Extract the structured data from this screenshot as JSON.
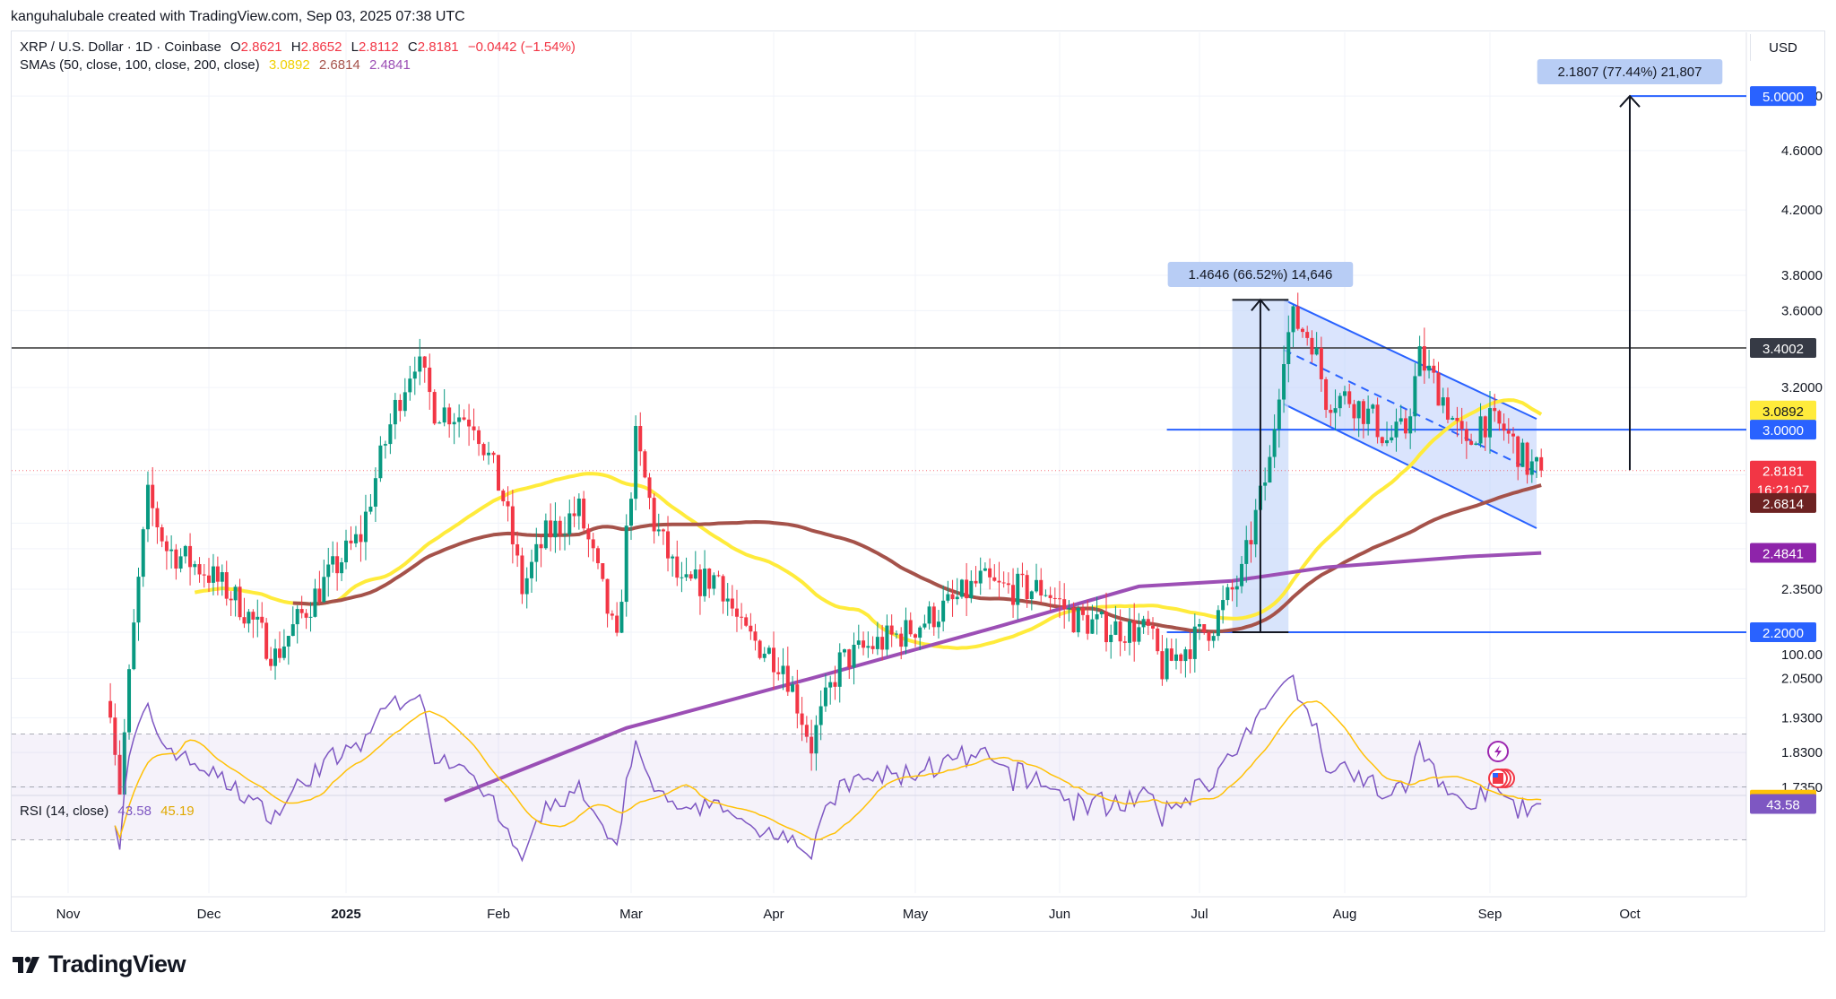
{
  "attribution": "kanguhalubale created with TradingView.com, Sep 03, 2025 07:38 UTC",
  "currency": "USD",
  "brand": "TradingView",
  "legend": {
    "symbol": "XRP / U.S. Dollar · 1D · Coinbase",
    "open_label": "O",
    "open": "2.8621",
    "high_label": "H",
    "high": "2.8652",
    "low_label": "L",
    "low": "2.8112",
    "close_label": "C",
    "close": "2.8181",
    "change": "−0.0442 (−1.54%)",
    "sma_label": "SMAs (50, close, 100, close, 200, close)",
    "sma50": "3.0892",
    "sma100": "2.6814",
    "sma200": "2.4841",
    "rsi_label": "RSI (14, close)",
    "rsi": "43.58",
    "rsi_ma": "45.19"
  },
  "colors": {
    "up": "#089981",
    "down": "#f23645",
    "sma50": "#ffeb3b",
    "sma100": "#a5524a",
    "sma200": "#9c4fb5",
    "rsi": "#7e57c2",
    "rsi_ma": "#ffc107",
    "accent": "#2962ff",
    "level": "#131722",
    "channel_fill": "#bbcdfb",
    "measure_fill": "#c7d8fa"
  },
  "icons": [
    "lightning-event-icon",
    "us-flag-event-icon",
    "tradingview-logo-icon"
  ],
  "chart_data": {
    "type": "candlestick",
    "x_axis": {
      "labels": [
        "Nov",
        "Dec",
        "2025",
        "Feb",
        "Mar",
        "Apr",
        "May",
        "Jun",
        "Jul",
        "Aug",
        "Sep",
        "Oct"
      ]
    },
    "y_axis": {
      "scale": "log",
      "range": [
        1.7,
        6.0
      ],
      "ticks": [
        "5.0000",
        "4.6000",
        "4.2000",
        "3.8000",
        "3.6000",
        "3.2000",
        "2.3500",
        "2.0500",
        "1.9300",
        "1.8300",
        "1.7350"
      ]
    },
    "price_labels": [
      {
        "label": "5.0000",
        "value": 5.0,
        "kind": "level"
      },
      {
        "label": "3.4002",
        "value": 3.4002,
        "kind": "resistance"
      },
      {
        "label": "3.0892",
        "value": 3.0892,
        "kind": "sma50"
      },
      {
        "label": "3.0000",
        "value": 3.0,
        "kind": "level"
      },
      {
        "label": "2.8181",
        "value": 2.8181,
        "kind": "last",
        "countdown": "16:21:07"
      },
      {
        "label": "2.6814",
        "value": 2.6814,
        "kind": "sma100"
      },
      {
        "label": "2.4841",
        "value": 2.4841,
        "kind": "sma200"
      },
      {
        "label": "2.2000",
        "value": 2.2,
        "kind": "level"
      }
    ],
    "annotations": [
      {
        "text": "1.4646 (66.52%) 14,646",
        "from": 2.2,
        "to": 3.66
      },
      {
        "text": "2.1807 (77.44%) 21,807",
        "from": 2.82,
        "to": 5.0
      }
    ],
    "pattern": "descending channel (bull flag)",
    "rsi": {
      "range": [
        0,
        100
      ],
      "ticks": [
        "100.00"
      ],
      "value": 43.58,
      "ma": 45.19,
      "bands": [
        30,
        70
      ]
    }
  }
}
